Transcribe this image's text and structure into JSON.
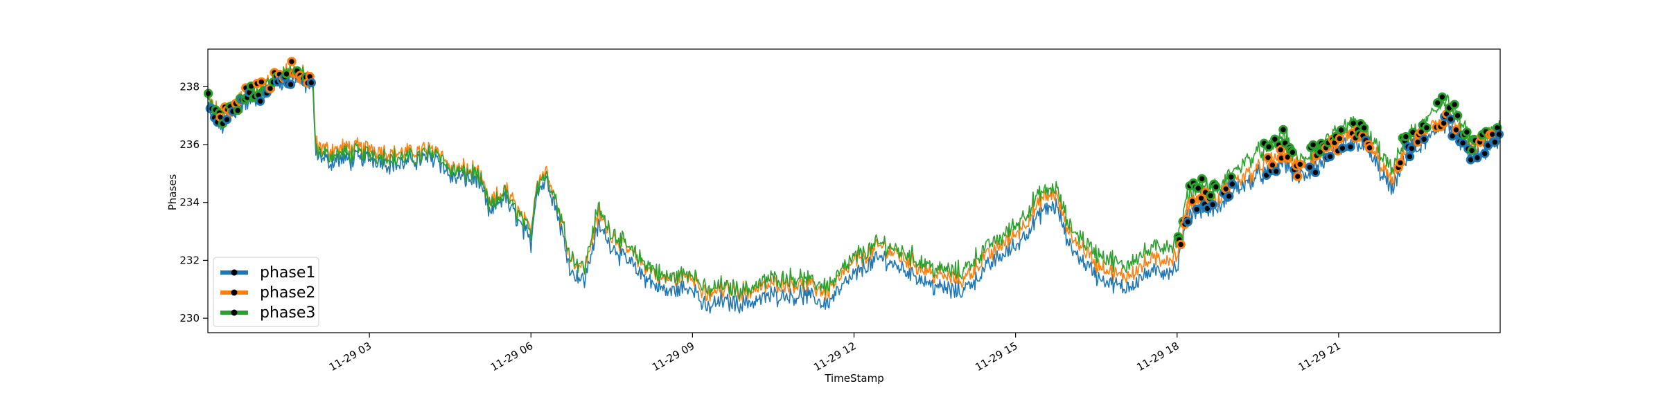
{
  "chart_data": {
    "type": "line",
    "xlabel": "TimeStamp",
    "ylabel": "Phases",
    "x_range": [
      "11-29 00:00",
      "11-30 00:00"
    ],
    "ylim": [
      229.5,
      239.3
    ],
    "x_ticks": [
      "11-29 03",
      "11-29 06",
      "11-29 09",
      "11-29 12",
      "11-29 15",
      "11-29 18",
      "11-29 21"
    ],
    "x_tick_hours": [
      3,
      6,
      9,
      12,
      15,
      18,
      21
    ],
    "y_ticks": [
      230,
      232,
      234,
      236,
      238
    ],
    "y_tick_labels": [
      "230",
      "232",
      "234",
      "236",
      "238"
    ],
    "grid": false,
    "legend_position": "lower-left",
    "legend_marker": "black dot on thick line",
    "x_hours": [
      0,
      0.25,
      0.5,
      0.75,
      1,
      1.25,
      1.5,
      1.75,
      1.95,
      2.0,
      2.25,
      2.5,
      3,
      3.5,
      4,
      4.25,
      4.5,
      5,
      5.25,
      5.5,
      6,
      6.1,
      6.3,
      6.5,
      6.75,
      7,
      7.25,
      7.3,
      7.5,
      8,
      8.5,
      9,
      9.25,
      9.5,
      10,
      10.5,
      11,
      11.5,
      12,
      12.5,
      13,
      13.5,
      14,
      14.5,
      15,
      15.5,
      15.75,
      16,
      16.5,
      17,
      17.5,
      18,
      18.2,
      18.5,
      18.75,
      19,
      19.25,
      19.5,
      20,
      20.25,
      20.5,
      21,
      21.25,
      21.5,
      22,
      22.25,
      22.5,
      23,
      23.5,
      24
    ],
    "series": [
      {
        "name": "phase1",
        "color": "#1f77b4",
        "values": [
          237.3,
          236.6,
          237.2,
          237.5,
          237.7,
          238.1,
          238.4,
          238.2,
          237.9,
          235.7,
          235.4,
          235.5,
          235.5,
          235.3,
          235.5,
          235.6,
          234.9,
          234.8,
          233.6,
          234.2,
          232.6,
          234.4,
          234.8,
          233.6,
          231.6,
          231.3,
          233.2,
          233.1,
          232.5,
          231.6,
          230.9,
          231.1,
          230.3,
          230.6,
          230.5,
          230.8,
          230.8,
          230.5,
          231.5,
          232.1,
          231.6,
          231.1,
          230.9,
          231.8,
          232.5,
          233.7,
          233.9,
          232.5,
          231.5,
          231.0,
          231.6,
          231.7,
          233.6,
          233.9,
          233.7,
          234.4,
          234.6,
          234.9,
          235.4,
          234.8,
          235.1,
          235.8,
          236.1,
          235.9,
          234.4,
          235.6,
          235.9,
          236.8,
          235.5,
          236.1
        ]
      },
      {
        "name": "phase2",
        "color": "#ff7f0e",
        "values": [
          237.6,
          236.9,
          237.5,
          237.8,
          238.0,
          238.3,
          238.6,
          238.5,
          238.2,
          236.0,
          235.8,
          235.9,
          235.9,
          235.7,
          235.8,
          235.9,
          235.2,
          235.1,
          233.9,
          234.5,
          233.0,
          234.7,
          235.1,
          233.9,
          232.0,
          231.7,
          233.6,
          233.5,
          232.9,
          232.0,
          231.3,
          231.5,
          230.7,
          231.0,
          230.9,
          231.2,
          231.2,
          230.9,
          231.9,
          232.5,
          232.0,
          231.5,
          231.3,
          232.2,
          232.9,
          234.1,
          234.3,
          232.9,
          231.9,
          231.4,
          232.0,
          232.1,
          233.9,
          234.2,
          234.0,
          234.7,
          234.9,
          235.2,
          235.7,
          235.1,
          235.4,
          236.1,
          236.4,
          236.2,
          234.7,
          235.9,
          236.2,
          237.1,
          235.8,
          236.4
        ]
      },
      {
        "name": "phase3",
        "color": "#2ca02c",
        "values": [
          237.5,
          236.8,
          237.4,
          237.7,
          237.9,
          238.3,
          238.6,
          238.4,
          238.1,
          235.8,
          235.6,
          235.7,
          235.7,
          235.5,
          235.6,
          235.8,
          235.1,
          235.0,
          233.8,
          234.4,
          232.9,
          234.6,
          235.0,
          233.9,
          232.1,
          231.8,
          233.8,
          233.6,
          233.0,
          232.1,
          231.4,
          231.6,
          230.9,
          231.1,
          231.0,
          231.4,
          231.4,
          231.1,
          232.1,
          232.6,
          232.2,
          231.7,
          231.6,
          232.5,
          233.2,
          234.4,
          234.5,
          233.2,
          232.3,
          231.8,
          232.4,
          232.6,
          234.3,
          234.6,
          234.4,
          235.0,
          235.4,
          235.7,
          236.3,
          235.4,
          235.7,
          236.4,
          236.8,
          236.5,
          235.1,
          236.2,
          236.5,
          237.6,
          236.0,
          236.6
        ]
      }
    ]
  }
}
